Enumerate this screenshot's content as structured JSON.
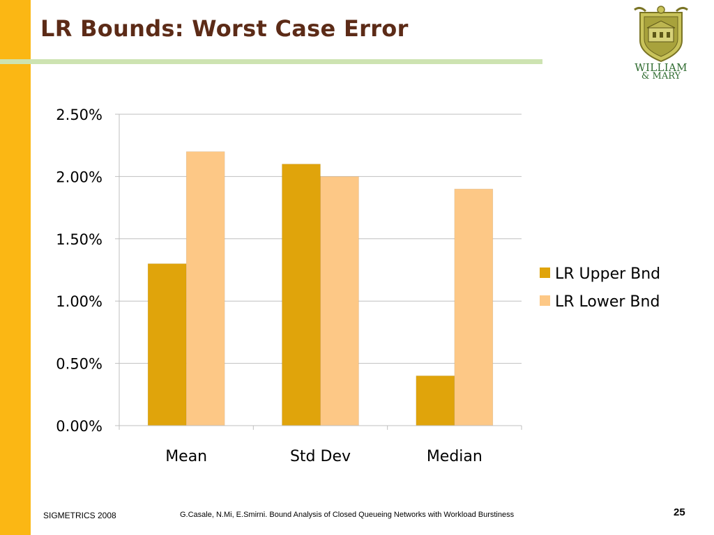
{
  "slide": {
    "title": "LR Bounds: Worst Case Error",
    "footer_left": "SIGMETRICS 2008",
    "footer_center": "G.Casale, N.Mi, E.Smirni. Bound Analysis of Closed Queueing Networks with Workload Burstiness",
    "page_number": "25",
    "logo": {
      "line1": "WILLIAM",
      "line2": "& MARY"
    },
    "colors": {
      "accent_bar": "#FBB714",
      "title_text": "#5C2B17",
      "title_rule": "#CDE3B1",
      "logo_green": "#2E6B2F"
    }
  },
  "chart_data": {
    "type": "bar",
    "categories": [
      "Mean",
      "Std Dev",
      "Median"
    ],
    "series": [
      {
        "name": "LR Upper Bnd",
        "values": [
          1.3,
          2.1,
          0.4
        ],
        "color": "#E0A40B"
      },
      {
        "name": "LR Lower Bnd",
        "values": [
          2.2,
          2.0,
          1.9
        ],
        "color": "#FDC886"
      }
    ],
    "ylim": [
      0,
      2.5
    ],
    "y_ticks": [
      0,
      0.5,
      1.0,
      1.5,
      2.0,
      2.5
    ],
    "y_tick_labels": [
      "0.00%",
      "0.50%",
      "1.00%",
      "1.50%",
      "2.00%",
      "2.50%"
    ],
    "y_unit": "%",
    "grid": true,
    "legend_position": "right",
    "title": "",
    "xlabel": "",
    "ylabel": ""
  }
}
